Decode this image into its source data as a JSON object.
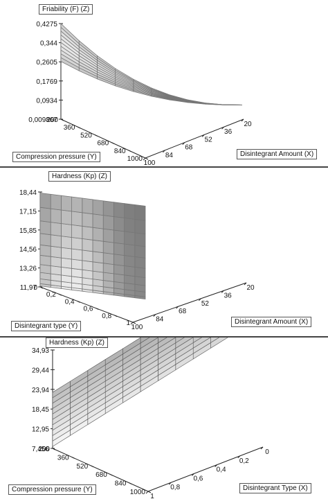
{
  "chart_data": [
    {
      "type": "surface",
      "title": "Friability (F) (Z)",
      "x_label": "Disintegrant Amount  (X)",
      "y_label": "Compression pressure (Y)",
      "z_ticks": [
        "0,4275",
        "0,344",
        "0,2605",
        "0,1769",
        "0,0934",
        "0,009867"
      ],
      "x_ticks": [
        "20",
        "36",
        "52",
        "68",
        "84",
        "100"
      ],
      "y_ticks": [
        "200",
        "360",
        "520",
        "680",
        "840",
        "1000"
      ],
      "zlim": [
        0.009867,
        0.4275
      ],
      "xlim": [
        20,
        100
      ],
      "ylim": [
        200,
        1000
      ]
    },
    {
      "type": "surface",
      "title": "Hardness (Kp) (Z)",
      "x_label": "Disintegrant Amount (X)",
      "y_label": "Disintegrant type (Y)",
      "z_ticks": [
        "18,44",
        "17,15",
        "15,85",
        "14,56",
        "13,26",
        "11,97"
      ],
      "x_ticks": [
        "20",
        "36",
        "52",
        "68",
        "84",
        "100"
      ],
      "y_ticks": [
        "0",
        "0,2",
        "0,4",
        "0,6",
        "0,8",
        "1"
      ],
      "zlim": [
        11.97,
        18.44
      ],
      "xlim": [
        20,
        100
      ],
      "ylim": [
        0,
        1
      ]
    },
    {
      "type": "surface",
      "title": "Hardness (Kp) (Z)",
      "x_label": "Disintegrant Type (X)",
      "y_label": "Compression pressure (Y)",
      "z_ticks": [
        "34,93",
        "29,44",
        "23,94",
        "18,45",
        "12,95",
        "7,456"
      ],
      "x_ticks": [
        "0",
        "0,2",
        "0,4",
        "0,6",
        "0,8",
        "1"
      ],
      "y_ticks": [
        "200",
        "360",
        "520",
        "680",
        "840",
        "1000"
      ],
      "zlim": [
        7.456,
        34.93
      ],
      "xlim": [
        0,
        1
      ],
      "ylim": [
        200,
        1000
      ]
    }
  ]
}
